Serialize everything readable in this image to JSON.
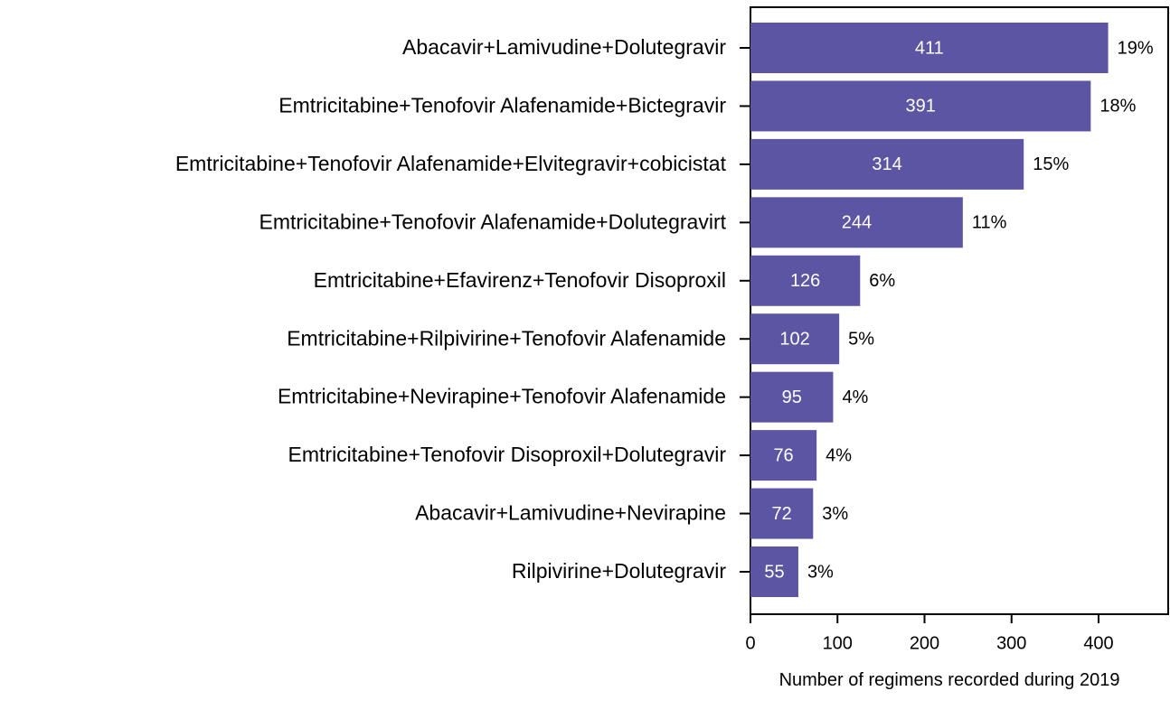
{
  "chart_data": {
    "type": "barh",
    "xlabel": "Number of regimens recorded during 2019",
    "categories": [
      "Abacavir+Lamivudine+Dolutegravir",
      "Emtricitabine+Tenofovir Alafenamide+Bictegravir",
      "Emtricitabine+Tenofovir Alafenamide+Elvitegravir+cobicistat",
      "Emtricitabine+Tenofovir Alafenamide+Dolutegravirt",
      "Emtricitabine+Efavirenz+Tenofovir Disoproxil",
      "Emtricitabine+Rilpivirine+Tenofovir Alafenamide",
      "Emtricitabine+Nevirapine+Tenofovir Alafenamide",
      "Emtricitabine+Tenofovir Disoproxil+Dolutegravir",
      "Abacavir+Lamivudine+Nevirapine",
      "Rilpivirine+Dolutegravir"
    ],
    "values": [
      411,
      391,
      314,
      244,
      126,
      102,
      95,
      76,
      72,
      55
    ],
    "percent_labels": [
      "19%",
      "18%",
      "15%",
      "11%",
      "6%",
      "5%",
      "4%",
      "4%",
      "3%",
      "3%"
    ],
    "color": "#5b55a3",
    "xlim": [
      0,
      480
    ],
    "xticks": [
      0,
      100,
      200,
      300,
      400
    ]
  }
}
